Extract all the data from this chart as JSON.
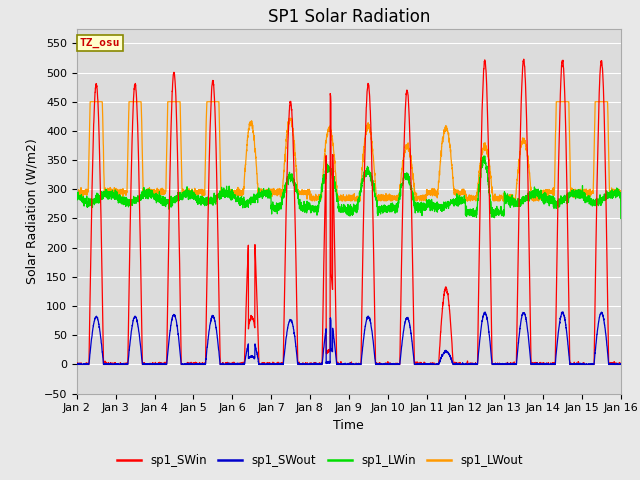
{
  "title": "SP1 Solar Radiation",
  "xlabel": "Time",
  "ylabel": "Solar Radiation (W/m2)",
  "ylim": [
    -50,
    575
  ],
  "tz_label": "TZ_osu",
  "x_tick_labels": [
    "Jan 2",
    "Jan 3",
    "Jan 4",
    "Jan 5",
    "Jan 6",
    "Jan 7",
    "Jan 8",
    "Jan 9",
    "Jan 10",
    "Jan 11",
    "Jan 12",
    "Jan 13",
    "Jan 14",
    "Jan 15",
    "Jan 16"
  ],
  "legend_entries": [
    "sp1_SWin",
    "sp1_SWout",
    "sp1_LWin",
    "sp1_LWout"
  ],
  "legend_colors": [
    "#ff0000",
    "#0000cc",
    "#00dd00",
    "#ff9900"
  ],
  "bg_color": "#e8e8e8",
  "plot_bg_color": "#dcdcdc",
  "grid_color": "#ffffff",
  "title_fontsize": 12,
  "label_fontsize": 9,
  "tick_fontsize": 8,
  "day_peaks_sw": [
    480,
    480,
    500,
    485,
    270,
    450,
    475,
    480,
    470,
    130,
    520,
    520,
    520,
    520
  ],
  "lw_base": 290,
  "sw_night": -2
}
